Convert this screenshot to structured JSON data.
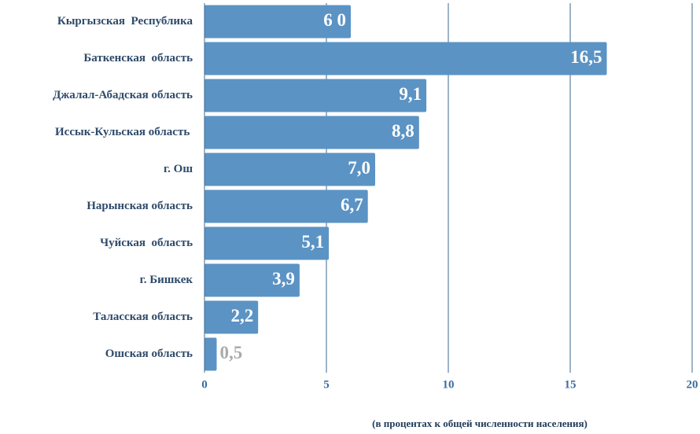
{
  "chart_data": {
    "type": "hbar",
    "categories": [
      "Кыргызская  Республика",
      "Баткенская  область",
      "Джалал-Абадская область",
      "Иссык-Кульская область ",
      "г. Ош",
      "Нарынская область",
      "Чуйская  область",
      "г. Бишкек",
      "Таласская область",
      "Ошская область"
    ],
    "values": [
      6.0,
      16.5,
      9.1,
      8.8,
      7.0,
      6.7,
      5.1,
      3.9,
      2.2,
      0.5
    ],
    "value_labels": [
      "6 0",
      "16,5",
      "9,1",
      "8,8",
      "7,0",
      "6,7",
      "5,1",
      "3,9",
      "2,2",
      "0,5"
    ],
    "color": "#5b93c4",
    "xlim": [
      0,
      20
    ],
    "xticks": [
      0,
      5,
      10,
      15,
      20
    ],
    "grid": true,
    "xlabel": "(в процентах к общей численности населения)"
  }
}
